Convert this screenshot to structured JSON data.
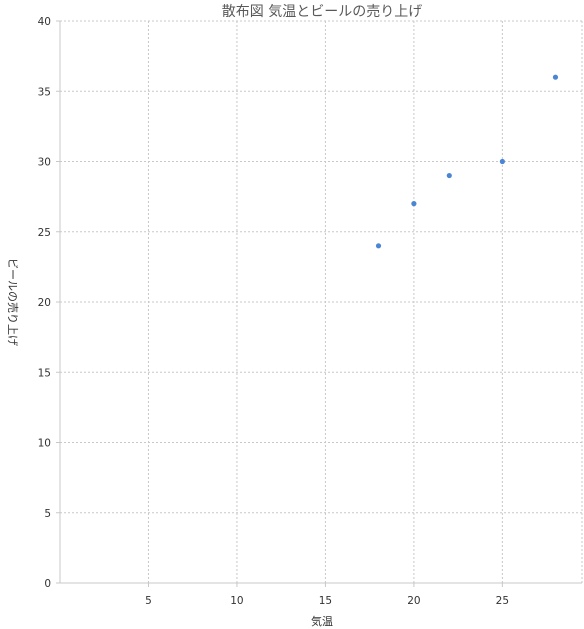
{
  "chart_data": {
    "type": "scatter",
    "title": "散布図 気温とビールの売り上げ",
    "xlabel": "気温",
    "ylabel": "ビールの売り上げ",
    "xlim": [
      0,
      29.5
    ],
    "ylim": [
      0,
      40
    ],
    "xticks": [
      5,
      10,
      15,
      20,
      25
    ],
    "yticks": [
      0,
      5,
      10,
      15,
      20,
      25,
      30,
      35,
      40
    ],
    "grid": true,
    "series": [
      {
        "color": "#4a86d4",
        "points": [
          {
            "x": 18,
            "y": 24
          },
          {
            "x": 20,
            "y": 27
          },
          {
            "x": 22,
            "y": 29
          },
          {
            "x": 25,
            "y": 30
          },
          {
            "x": 28,
            "y": 36
          }
        ]
      }
    ]
  }
}
